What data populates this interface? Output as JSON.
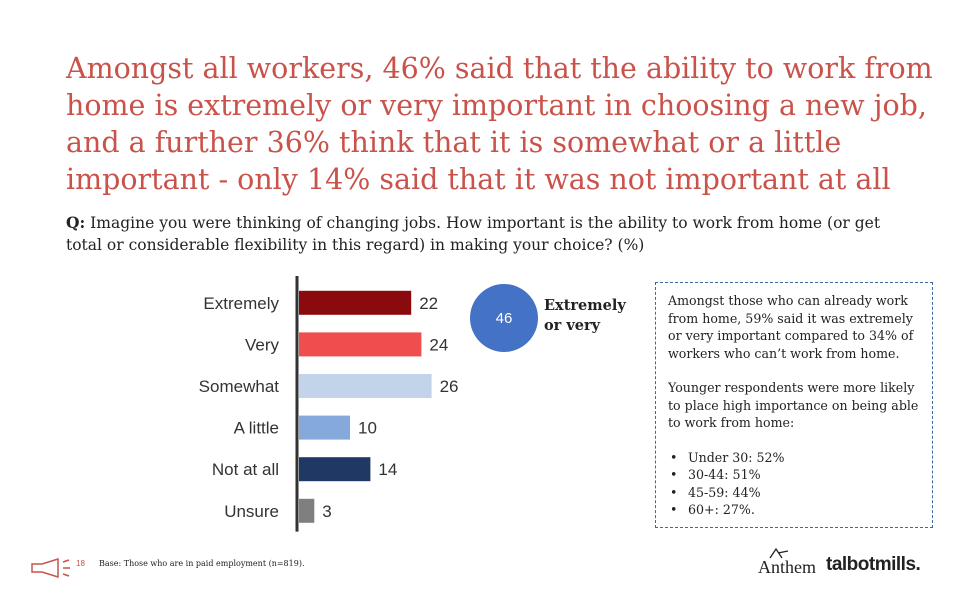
{
  "headline": "Amongst all workers, 46% said that the ability to work from home is extremely or very important in choosing a new job, and a further 36% think that it is somewhat or a little important - only 14% said that it was not important at all",
  "question": {
    "prefix": "Q:",
    "text": "Imagine you were thinking of changing jobs. How important is the ability to work from home (or get total or considerable flexibility in this regard) in making your choice? (%)"
  },
  "chart_data": {
    "type": "bar",
    "orientation": "horizontal",
    "categories": [
      "Extremely",
      "Very",
      "Somewhat",
      "A little",
      "Not at all",
      "Unsure"
    ],
    "values": [
      22,
      24,
      26,
      10,
      14,
      3
    ],
    "colors": [
      "#8b0a0e",
      "#f04e4e",
      "#c2d3ea",
      "#86a9dc",
      "#1f3864",
      "#7f7f7f"
    ],
    "xlim": [
      0,
      30
    ],
    "data_labels": true,
    "grid": false,
    "title": "",
    "xlabel": "",
    "ylabel": ""
  },
  "callout": {
    "value": "46",
    "label": "Extremely or very",
    "color": "#4472c4"
  },
  "note_box": {
    "para1": "Amongst those who can already work from home, 59% said it was extremely or very important compared to 34% of workers who can’t work from home.",
    "para2": "Younger respondents were more likely to place high importance on being able to work from home:",
    "bullets": [
      "Under 30: 52%",
      "30-44: 51%",
      "45-59: 44%",
      "60+: 27%."
    ]
  },
  "footer": {
    "page_number": "18",
    "base": "Base: Those who are in paid employment (n=819).",
    "brand_anthem": "Anthem",
    "brand_talbot": "talbotmills."
  },
  "accent_color": "#c9524a"
}
